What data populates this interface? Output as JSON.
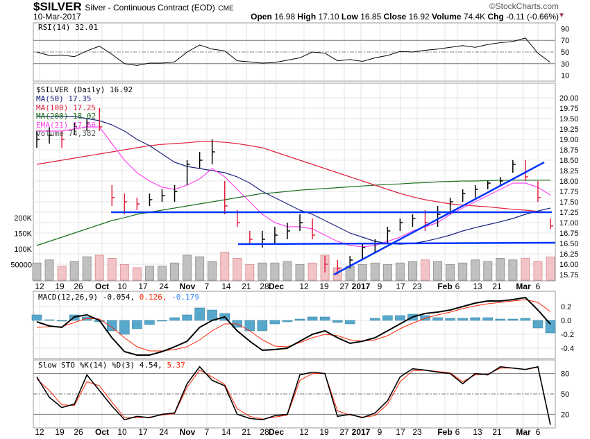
{
  "header": {
    "symbol": "$SILVER",
    "name": "Silver - Continuous Contract (EOD)",
    "exchange": "CME",
    "date": "10-Mar-2017",
    "brand": "©StockCharts.com",
    "open_label": "Open",
    "open": "16.98",
    "high_label": "High",
    "high": "17.10",
    "low_label": "Low",
    "low": "16.85",
    "close_label": "Close",
    "close": "16.92",
    "volume_label": "Volume",
    "volume": "74.4K",
    "chg_label": "Chg",
    "chg": "-0.11 (-0.66%)",
    "chg_icon": "triangle-down-icon"
  },
  "colors": {
    "up": "#000000",
    "down": "#e0203c",
    "ma50": "#1a237e",
    "ma100": "#e0203c",
    "ma200": "#1b6e1b",
    "ema21": "#ff44ee",
    "vol_up": "#c0c0c0",
    "vol_down": "#f2c4c8",
    "trend": "#0033ff",
    "macd": "#000000",
    "signal": "#ff2200",
    "hist": "#58a8cc",
    "sto_k": "#000000",
    "sto_d": "#ff2200"
  },
  "chart_data": [
    {
      "type": "line",
      "title": "RSI(14) 32.01",
      "yticks": [
        "90",
        "70",
        "50",
        "30",
        "10"
      ],
      "ylim": [
        0,
        100
      ],
      "values": [
        50,
        44,
        45,
        42,
        52,
        60,
        46,
        30,
        27,
        31,
        31,
        33,
        50,
        62,
        55,
        52,
        35,
        33,
        31,
        32,
        36,
        40,
        50,
        48,
        35,
        37,
        34,
        40,
        44,
        51,
        50,
        53,
        55,
        58,
        61,
        58,
        63,
        66,
        68,
        74,
        48,
        32.01
      ]
    },
    {
      "type": "ohlc",
      "title": "$SILVER (Daily) 16.92",
      "legend": [
        "MA(50) 17.35",
        "MA(100) 17.25",
        "MA(200) 18.02",
        "EMA(21) 17.66",
        "Volume 74,382"
      ],
      "yticks": [
        "20.00",
        "19.75",
        "19.50",
        "19.25",
        "19.00",
        "18.75",
        "18.50",
        "18.25",
        "18.00",
        "17.75",
        "17.50",
        "17.25",
        "17.00",
        "16.75",
        "16.50",
        "16.25",
        "16.00",
        "15.75"
      ],
      "volume_ticks": [
        "200K",
        "150K",
        "100K",
        "50000"
      ],
      "ylim": [
        15.6,
        20.35
      ],
      "bars_hlc": [
        [
          19.2,
          18.8,
          19.0
        ],
        [
          19.3,
          18.9,
          19.1
        ],
        [
          19.2,
          18.8,
          19.0
        ],
        [
          19.4,
          19.1,
          19.3
        ],
        [
          19.5,
          19.2,
          19.4
        ],
        [
          19.75,
          19.2,
          19.3
        ],
        [
          17.9,
          17.4,
          17.6
        ],
        [
          17.7,
          17.2,
          17.5
        ],
        [
          17.6,
          17.3,
          17.45
        ],
        [
          17.7,
          17.4,
          17.55
        ],
        [
          17.8,
          17.5,
          17.65
        ],
        [
          17.9,
          17.5,
          17.75
        ],
        [
          18.5,
          17.9,
          18.4
        ],
        [
          18.7,
          18.3,
          18.5
        ],
        [
          19.0,
          18.4,
          18.7
        ],
        [
          18.0,
          17.2,
          17.4
        ],
        [
          17.3,
          16.9,
          17.0
        ],
        [
          16.8,
          16.5,
          16.6
        ],
        [
          16.8,
          16.4,
          16.6
        ],
        [
          16.9,
          16.5,
          16.7
        ],
        [
          17.0,
          16.6,
          16.8
        ],
        [
          17.2,
          16.8,
          17.0
        ],
        [
          17.1,
          16.6,
          16.7
        ],
        [
          16.2,
          15.8,
          16.0
        ],
        [
          16.1,
          15.75,
          15.9
        ],
        [
          16.2,
          15.9,
          16.1
        ],
        [
          16.5,
          16.1,
          16.4
        ],
        [
          16.6,
          16.3,
          16.5
        ],
        [
          16.9,
          16.5,
          16.8
        ],
        [
          17.1,
          16.8,
          17.0
        ],
        [
          17.2,
          16.9,
          17.1
        ],
        [
          17.3,
          16.8,
          17.0
        ],
        [
          17.4,
          16.9,
          17.2
        ],
        [
          17.6,
          17.2,
          17.5
        ],
        [
          17.8,
          17.5,
          17.7
        ],
        [
          17.9,
          17.6,
          17.8
        ],
        [
          18.0,
          17.8,
          17.95
        ],
        [
          18.1,
          17.9,
          18.0
        ],
        [
          18.5,
          18.2,
          18.4
        ],
        [
          18.5,
          18.0,
          18.1
        ],
        [
          18.0,
          17.5,
          17.6
        ],
        [
          17.1,
          16.85,
          16.92
        ]
      ],
      "ma50": [
        19.55,
        19.55,
        19.55,
        19.55,
        19.5,
        19.45,
        19.35,
        19.2,
        19.0,
        18.85,
        18.65,
        18.45,
        18.35,
        18.3,
        18.25,
        18.2,
        18.1,
        17.95,
        17.75,
        17.6,
        17.45,
        17.3,
        17.2,
        17.05,
        16.9,
        16.75,
        16.65,
        16.55,
        16.5,
        16.48,
        16.5,
        16.55,
        16.62,
        16.7,
        16.8,
        16.88,
        16.95,
        17.02,
        17.1,
        17.2,
        17.28,
        17.35
      ],
      "ma100": [
        18.4,
        18.45,
        18.5,
        18.55,
        18.6,
        18.65,
        18.7,
        18.75,
        18.8,
        18.85,
        18.88,
        18.9,
        18.92,
        18.95,
        18.95,
        18.93,
        18.9,
        18.85,
        18.8,
        18.7,
        18.6,
        18.5,
        18.4,
        18.3,
        18.2,
        18.1,
        18.0,
        17.9,
        17.8,
        17.7,
        17.62,
        17.55,
        17.5,
        17.45,
        17.42,
        17.4,
        17.38,
        17.35,
        17.32,
        17.3,
        17.27,
        17.25
      ],
      "ma200": [
        16.45,
        16.55,
        16.65,
        16.75,
        16.85,
        16.95,
        17.05,
        17.12,
        17.2,
        17.25,
        17.3,
        17.35,
        17.4,
        17.45,
        17.5,
        17.55,
        17.6,
        17.65,
        17.7,
        17.72,
        17.75,
        17.78,
        17.8,
        17.82,
        17.84,
        17.86,
        17.88,
        17.9,
        17.92,
        17.93,
        17.95,
        17.96,
        17.98,
        17.99,
        18.0,
        18.0,
        18.01,
        18.02,
        18.02,
        18.02,
        18.02,
        18.02
      ],
      "ema21": [
        19.2,
        19.2,
        19.2,
        19.25,
        19.3,
        19.3,
        18.9,
        18.5,
        18.2,
        18.0,
        17.85,
        17.8,
        17.9,
        18.05,
        18.3,
        18.1,
        17.8,
        17.5,
        17.2,
        17.0,
        16.9,
        16.9,
        16.85,
        16.7,
        16.55,
        16.45,
        16.42,
        16.45,
        16.55,
        16.65,
        16.8,
        16.9,
        17.0,
        17.2,
        17.35,
        17.5,
        17.65,
        17.8,
        17.95,
        17.95,
        17.85,
        17.66
      ],
      "volume_k": [
        55,
        65,
        45,
        60,
        75,
        80,
        70,
        50,
        40,
        45,
        45,
        55,
        80,
        75,
        60,
        90,
        70,
        50,
        55,
        55,
        60,
        50,
        55,
        80,
        40,
        45,
        50,
        55,
        50,
        55,
        60,
        65,
        60,
        50,
        55,
        65,
        60,
        70,
        65,
        70,
        60,
        74.4
      ],
      "annotations": {
        "support_levels": [
          17.25,
          16.5
        ],
        "trendline": [
          [
            15.75,
            18.45
          ]
        ]
      }
    },
    {
      "type": "line",
      "title": "MACD(12,26,9)",
      "title_values": [
        "-0.054,",
        "0.126,",
        "-0.179"
      ],
      "yticks": [
        "0.2",
        "0.0",
        "-0.2",
        "-0.4"
      ],
      "ylim": [
        -0.55,
        0.42
      ],
      "macd": [
        -0.02,
        -0.08,
        -0.1,
        0.05,
        0.08,
        0.0,
        -0.25,
        -0.45,
        -0.5,
        -0.5,
        -0.45,
        -0.38,
        -0.3,
        -0.1,
        0.0,
        0.05,
        -0.15,
        -0.3,
        -0.43,
        -0.42,
        -0.4,
        -0.3,
        -0.2,
        -0.15,
        -0.25,
        -0.33,
        -0.3,
        -0.25,
        -0.15,
        -0.05,
        0.05,
        0.1,
        0.12,
        0.15,
        0.2,
        0.25,
        0.28,
        0.28,
        0.3,
        0.33,
        0.15,
        -0.054
      ],
      "signal": [
        -0.1,
        -0.09,
        -0.09,
        -0.03,
        0.03,
        0.02,
        -0.1,
        -0.25,
        -0.38,
        -0.44,
        -0.44,
        -0.42,
        -0.38,
        -0.28,
        -0.15,
        -0.05,
        -0.05,
        -0.15,
        -0.28,
        -0.37,
        -0.38,
        -0.32,
        -0.25,
        -0.2,
        -0.22,
        -0.28,
        -0.3,
        -0.28,
        -0.22,
        -0.12,
        -0.04,
        0.03,
        0.08,
        0.12,
        0.17,
        0.21,
        0.24,
        0.26,
        0.28,
        0.3,
        0.26,
        0.126
      ]
    },
    {
      "type": "line",
      "title": "Slow STO %K(14) %D(3) 4.54,",
      "title_value2": "5.37",
      "yticks": [
        "80",
        "50",
        "20"
      ],
      "ylim": [
        0,
        100
      ],
      "k": [
        75,
        45,
        30,
        35,
        78,
        55,
        32,
        12,
        17,
        15,
        20,
        22,
        65,
        90,
        70,
        62,
        20,
        14,
        12,
        18,
        20,
        78,
        82,
        80,
        17,
        20,
        15,
        22,
        40,
        75,
        87,
        85,
        82,
        80,
        65,
        80,
        78,
        90,
        88,
        86,
        90,
        4.54
      ],
      "d": [
        72,
        55,
        34,
        33,
        68,
        62,
        38,
        15,
        15,
        16,
        19,
        21,
        60,
        85,
        75,
        64,
        28,
        17,
        13,
        16,
        19,
        70,
        80,
        80,
        25,
        19,
        16,
        18,
        35,
        68,
        84,
        85,
        83,
        81,
        68,
        78,
        79,
        88,
        88,
        86,
        89,
        5.37
      ]
    }
  ],
  "xticks": [
    "12",
    "19",
    "26",
    "Oct",
    "10",
    "17",
    "24",
    "Nov",
    "7",
    "14",
    "21",
    "28",
    "Dec",
    "12",
    "19",
    "27",
    "2017",
    "9",
    "17",
    "23",
    "Feb",
    "6",
    "13",
    "21",
    "Mar",
    "6"
  ]
}
